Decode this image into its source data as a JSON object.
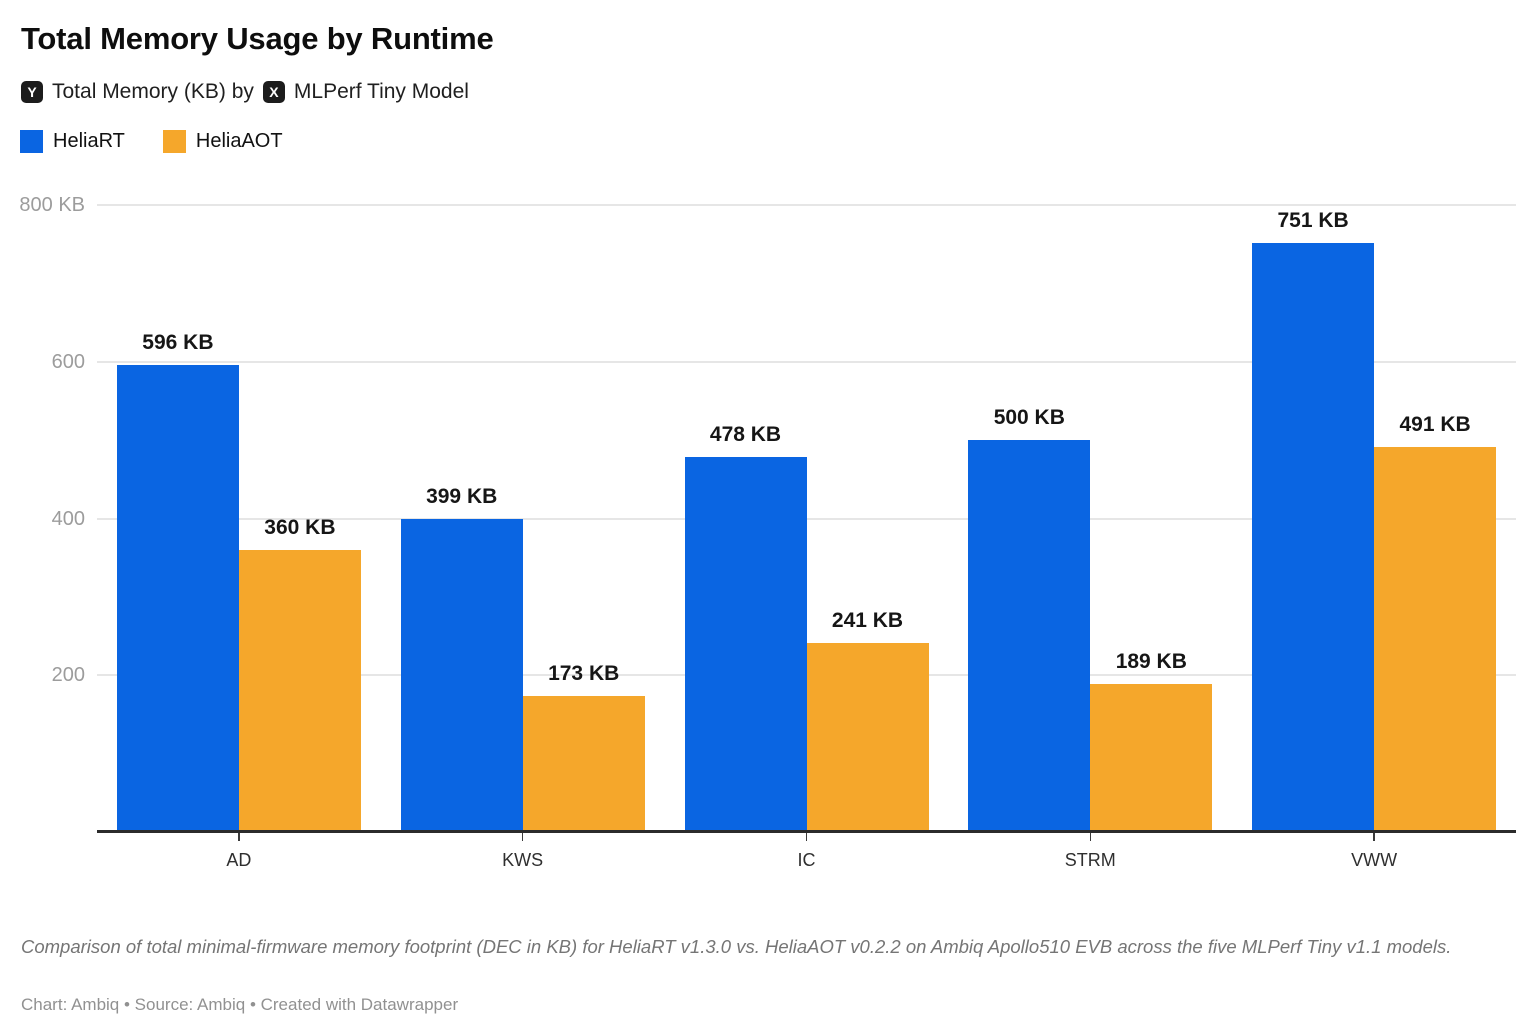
{
  "header": {
    "title": "Total Memory Usage by Runtime",
    "subtitle": {
      "y_badge": "Y",
      "y_text": "Total Memory (KB) by",
      "x_badge": "X",
      "x_text": "MLPerf Tiny Model"
    }
  },
  "chart_data": {
    "type": "bar",
    "title": "Total Memory Usage by Runtime",
    "ylabel": "Total Memory (KB)",
    "xlabel": "MLPerf Tiny Model",
    "unit": "KB",
    "categories": [
      "AD",
      "KWS",
      "IC",
      "STRM",
      "VWW"
    ],
    "series": [
      {
        "name": "HeliaRT",
        "color": "#0A65E2",
        "values": [
          596,
          399,
          478,
          500,
          751
        ]
      },
      {
        "name": "HeliaAOT",
        "color": "#F5A72B",
        "values": [
          360,
          173,
          241,
          189,
          491
        ]
      }
    ],
    "value_label_suffix": " KB",
    "ylim": [
      0,
      800
    ],
    "y_ticks": [
      {
        "value": 200,
        "label": "200"
      },
      {
        "value": 400,
        "label": "400"
      },
      {
        "value": 600,
        "label": "600"
      },
      {
        "value": 800,
        "label": "800 KB"
      }
    ],
    "grid": true,
    "legend_position": "top-left"
  },
  "footer": {
    "footnote": "Comparison of total minimal-firmware memory footprint (DEC in KB) for HeliaRT v1.3.0 vs. HeliaAOT v0.2.2 on Ambiq Apollo510 EVB across the five MLPerf Tiny v1.1 models.",
    "credit": "Chart: Ambiq • Source: Ambiq • Created with Datawrapper"
  }
}
